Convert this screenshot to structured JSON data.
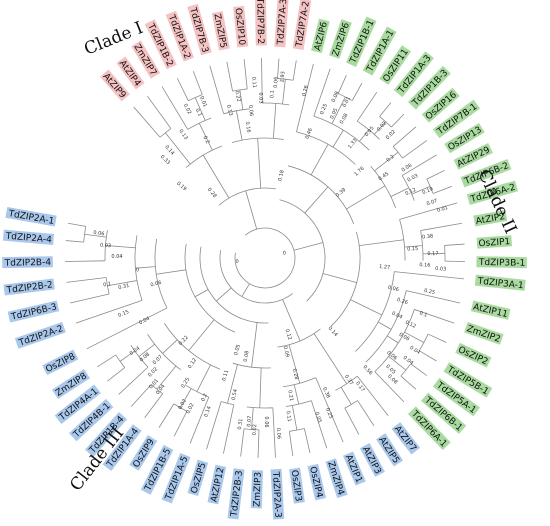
{
  "clades": {
    "clade1": {
      "label": "Clade I",
      "color": "#f4c2c2"
    },
    "clade2": {
      "label": "Clade II",
      "color": "#a9dba0"
    },
    "clade3": {
      "label": "Clade III",
      "color": "#a9c8ec"
    }
  },
  "leaves": [
    {
      "name": "AtZIP9",
      "clade": "clade1",
      "angle": -131
    },
    {
      "name": "AtZIP4",
      "clade": "clade1",
      "angle": -126
    },
    {
      "name": "ZmZIP7",
      "clade": "clade1",
      "angle": -121
    },
    {
      "name": "TdZIP1B-2",
      "clade": "clade1",
      "angle": -116
    },
    {
      "name": "TdZIP1A-2",
      "clade": "clade1",
      "angle": -111
    },
    {
      "name": "TdZIP7B-3",
      "clade": "clade1",
      "angle": -106
    },
    {
      "name": "ZmZIP5",
      "clade": "clade1",
      "angle": -101
    },
    {
      "name": "OsZIP10",
      "clade": "clade1",
      "angle": -96
    },
    {
      "name": "TdZIP7B-2",
      "clade": "clade1",
      "angle": -91
    },
    {
      "name": "TdZIP7A-3",
      "clade": "clade1",
      "angle": -86
    },
    {
      "name": "TdZIP7A-2",
      "clade": "clade1",
      "angle": -81
    },
    {
      "name": "AtZIP6",
      "clade": "clade2",
      "angle": -76
    },
    {
      "name": "ZmZIP6",
      "clade": "clade2",
      "angle": -71
    },
    {
      "name": "TdZIP1B-1",
      "clade": "clade2",
      "angle": -66
    },
    {
      "name": "TdZIP1A-1",
      "clade": "clade2",
      "angle": -61
    },
    {
      "name": "OsZIP11",
      "clade": "clade2",
      "angle": -56
    },
    {
      "name": "TdZIP1A-3",
      "clade": "clade2",
      "angle": -51
    },
    {
      "name": "TdZIP1B-3",
      "clade": "clade2",
      "angle": -46
    },
    {
      "name": "OsZIP16",
      "clade": "clade2",
      "angle": -41
    },
    {
      "name": "TdZIP7B-1",
      "clade": "clade2",
      "angle": -36
    },
    {
      "name": "OsZIP13",
      "clade": "clade2",
      "angle": -31
    },
    {
      "name": "AtZIP29",
      "clade": "clade2",
      "angle": -26
    },
    {
      "name": "TdZIP6B-2",
      "clade": "clade2",
      "angle": -21
    },
    {
      "name": "TdZIP6A-2",
      "clade": "clade2",
      "angle": -16
    },
    {
      "name": "AtZIP2",
      "clade": "clade2",
      "angle": -10
    },
    {
      "name": "OsZIP1",
      "clade": "clade2",
      "angle": -4
    },
    {
      "name": "TdZIP3B-1",
      "clade": "clade2",
      "angle": 1
    },
    {
      "name": "TdZIP3A-1",
      "clade": "clade2",
      "angle": 6
    },
    {
      "name": "AtZIP11",
      "clade": "clade2",
      "angle": 13
    },
    {
      "name": "ZmZIP2",
      "clade": "clade2",
      "angle": 19
    },
    {
      "name": "OsZIP2",
      "clade": "clade2",
      "angle": 25
    },
    {
      "name": "TdZIP5B-1",
      "clade": "clade2",
      "angle": 31
    },
    {
      "name": "TdZIP5A-1",
      "clade": "clade2",
      "angle": 36
    },
    {
      "name": "TdZIP6B-1",
      "clade": "clade2",
      "angle": 41
    },
    {
      "name": "TdZIP6A-1",
      "clade": "clade2",
      "angle": 46
    },
    {
      "name": "AtZIP7",
      "clade": "clade3",
      "angle": 52
    },
    {
      "name": "AtZIP5",
      "clade": "clade3",
      "angle": 57
    },
    {
      "name": "AtZIP3",
      "clade": "clade3",
      "angle": 62
    },
    {
      "name": "AtZIP1",
      "clade": "clade3",
      "angle": 67
    },
    {
      "name": "ZmZIP4",
      "clade": "clade3",
      "angle": 72
    },
    {
      "name": "OsZIP4",
      "clade": "clade3",
      "angle": 77
    },
    {
      "name": "OsZIP3",
      "clade": "clade3",
      "angle": 82
    },
    {
      "name": "TdZIP2A-3",
      "clade": "clade3",
      "angle": 87
    },
    {
      "name": "ZmZIP3",
      "clade": "clade3",
      "angle": 92
    },
    {
      "name": "TdZIP2B-3",
      "clade": "clade3",
      "angle": 97
    },
    {
      "name": "AtZIP12",
      "clade": "clade3",
      "angle": 102
    },
    {
      "name": "OsZIP5",
      "clade": "clade3",
      "angle": 107
    },
    {
      "name": "TdZIP1A-5",
      "clade": "clade3",
      "angle": 112
    },
    {
      "name": "TdZIP1B-5",
      "clade": "clade3",
      "angle": 117
    },
    {
      "name": "OsZIP9",
      "clade": "clade3",
      "angle": 122
    },
    {
      "name": "TdZIP1A-4",
      "clade": "clade3",
      "angle": 127
    },
    {
      "name": "TdZIP1B-4",
      "clade": "clade3",
      "angle": 132
    },
    {
      "name": "TdZIP4B-1",
      "clade": "clade3",
      "angle": 137
    },
    {
      "name": "TdZIP4A-1",
      "clade": "clade3",
      "angle": 142
    },
    {
      "name": "ZmZIP8",
      "clade": "clade3",
      "angle": 147
    },
    {
      "name": "OsZIP8",
      "clade": "clade3",
      "angle": 153
    },
    {
      "name": "TdZIP2A-2",
      "clade": "clade3",
      "angle": 161
    },
    {
      "name": "TdZIP6B-3",
      "clade": "clade3",
      "angle": 167
    },
    {
      "name": "TdZIP2B-2",
      "clade": "clade3",
      "angle": 173
    },
    {
      "name": "TdZIP2B-4",
      "clade": "clade3",
      "angle": 179
    },
    {
      "name": "TdZIP2A-4",
      "clade": "clade3",
      "angle": 185
    },
    {
      "name": "TdZIP2A-1",
      "clade": "clade3",
      "angle": 190
    }
  ],
  "branch_labels": [
    {
      "text": "0.28",
      "angle": -130,
      "depth": 0.42
    },
    {
      "text": "0.19",
      "angle": -140,
      "depth": 0.55
    },
    {
      "text": "0.33",
      "angle": -136,
      "depth": 0.7
    },
    {
      "text": "0.14",
      "angle": -132,
      "depth": 0.72
    },
    {
      "text": "0.13",
      "angle": -124,
      "depth": 0.74
    },
    {
      "text": "0.2",
      "angle": -117,
      "depth": 0.66
    },
    {
      "text": "0.1",
      "angle": -115,
      "depth": 0.8
    },
    {
      "text": "0.01",
      "angle": -112,
      "depth": 0.84
    },
    {
      "text": "0.02",
      "angle": -118,
      "depth": 0.84
    },
    {
      "text": "0.13",
      "angle": -104,
      "depth": 0.76
    },
    {
      "text": "0.16",
      "angle": -98,
      "depth": 0.66
    },
    {
      "text": "0.06",
      "angle": -96,
      "depth": 0.74
    },
    {
      "text": "0.22",
      "angle": -100,
      "depth": 0.82
    },
    {
      "text": "0.03",
      "angle": -92,
      "depth": 0.8
    },
    {
      "text": "0.11",
      "angle": -94,
      "depth": 0.88
    },
    {
      "text": "0.1",
      "angle": -87,
      "depth": 0.82
    },
    {
      "text": "0.06",
      "angle": -86,
      "depth": 0.88
    },
    {
      "text": "2.93",
      "angle": -84,
      "depth": 0.91
    },
    {
      "text": "0.18",
      "angle": -78,
      "depth": 0.42
    },
    {
      "text": "0.26",
      "angle": -76,
      "depth": 0.86
    },
    {
      "text": "0.46",
      "angle": -70,
      "depth": 0.66
    },
    {
      "text": "0.25",
      "angle": -68,
      "depth": 0.8
    },
    {
      "text": "0.08",
      "angle": -66,
      "depth": 0.88
    },
    {
      "text": "0.01",
      "angle": -62,
      "depth": 0.88
    },
    {
      "text": "0.05",
      "angle": -64,
      "depth": 0.8
    },
    {
      "text": "0.08",
      "angle": -60,
      "depth": 0.8
    },
    {
      "text": "1.33",
      "angle": -52,
      "depth": 0.72
    },
    {
      "text": "0.05",
      "angle": -50,
      "depth": 0.82
    },
    {
      "text": "0.02",
      "angle": -48,
      "depth": 0.88
    },
    {
      "text": "0.02",
      "angle": -44,
      "depth": 0.88
    },
    {
      "text": "0.39",
      "angle": -40,
      "depth": 0.5
    },
    {
      "text": "1.76",
      "angle": -42,
      "depth": 0.64
    },
    {
      "text": "0.45",
      "angle": -34,
      "depth": 0.72
    },
    {
      "text": "0.2",
      "angle": -38,
      "depth": 0.8
    },
    {
      "text": "0.06",
      "angle": -32,
      "depth": 0.84
    },
    {
      "text": "0.03",
      "angle": -28,
      "depth": 0.84
    },
    {
      "text": "0.12",
      "angle": -24,
      "depth": 0.8
    },
    {
      "text": "0.19",
      "angle": -22,
      "depth": 0.88
    },
    {
      "text": "0.07",
      "angle": -18,
      "depth": 0.88
    },
    {
      "text": "0.01",
      "angle": -15,
      "depth": 0.92
    },
    {
      "text": "0.38",
      "angle": -7,
      "depth": 0.82
    },
    {
      "text": "0.15",
      "angle": -3,
      "depth": 0.74
    },
    {
      "text": "0.17",
      "angle": -1,
      "depth": 0.84
    },
    {
      "text": "0.16",
      "angle": 3,
      "depth": 0.8
    },
    {
      "text": "0.03",
      "angle": 4,
      "depth": 0.88
    },
    {
      "text": "1.27",
      "angle": 5,
      "depth": 0.6
    },
    {
      "text": "0.25",
      "angle": 12,
      "depth": 0.84
    },
    {
      "text": "0.06",
      "angle": 14,
      "depth": 0.66
    },
    {
      "text": "0.26",
      "angle": 18,
      "depth": 0.72
    },
    {
      "text": "0.1",
      "angle": 20,
      "depth": 0.84
    },
    {
      "text": "0.04",
      "angle": 24,
      "depth": 0.72
    },
    {
      "text": "0.12",
      "angle": 25,
      "depth": 0.8
    },
    {
      "text": "0.06",
      "angle": 30,
      "depth": 0.8
    },
    {
      "text": "0.04",
      "angle": 32,
      "depth": 0.88
    },
    {
      "text": "0.04",
      "angle": 36,
      "depth": 0.88
    },
    {
      "text": "0.06",
      "angle": 38,
      "depth": 0.8
    },
    {
      "text": "0.05",
      "angle": 42,
      "depth": 0.84
    },
    {
      "text": "0.08",
      "angle": 44,
      "depth": 0.88
    },
    {
      "text": "0.56",
      "angle": 48,
      "depth": 0.76
    },
    {
      "text": "0.17",
      "angle": 54,
      "depth": 0.8
    },
    {
      "text": "0.37",
      "angle": 56,
      "depth": 0.74
    },
    {
      "text": "0.14",
      "angle": 48,
      "depth": 0.5
    },
    {
      "text": "0.38",
      "angle": 66,
      "depth": 0.74
    },
    {
      "text": "0.05",
      "angle": 72,
      "depth": 0.84
    },
    {
      "text": "0.25",
      "angle": 68,
      "depth": 0.84
    },
    {
      "text": "0.12",
      "angle": 74,
      "depth": 0.4
    },
    {
      "text": "0.09",
      "angle": 78,
      "depth": 0.48
    },
    {
      "text": "0.28",
      "angle": 76,
      "depth": 0.6
    },
    {
      "text": "0.21",
      "angle": 80,
      "depth": 0.7
    },
    {
      "text": "0.11",
      "angle": 82,
      "depth": 0.8
    },
    {
      "text": "0.06",
      "angle": 86,
      "depth": 0.88
    },
    {
      "text": "0.06",
      "angle": 90,
      "depth": 0.82
    },
    {
      "text": "0.02",
      "angle": 93,
      "depth": 0.86
    },
    {
      "text": "0.07",
      "angle": 95,
      "depth": 0.82
    },
    {
      "text": "0.31",
      "angle": 98,
      "depth": 0.84
    },
    {
      "text": "0.08",
      "angle": 100,
      "depth": 0.5
    },
    {
      "text": "0.54",
      "angle": 102,
      "depth": 0.7
    },
    {
      "text": "0.05",
      "angle": 106,
      "depth": 0.48
    },
    {
      "text": "0.11",
      "angle": 108,
      "depth": 0.62
    },
    {
      "text": "0.14",
      "angle": 110,
      "depth": 0.82
    },
    {
      "text": "0.2",
      "angle": 113,
      "depth": 0.76
    },
    {
      "text": "0.02",
      "angle": 116,
      "depth": 0.84
    },
    {
      "text": "0.02",
      "angle": 119,
      "depth": 0.84
    },
    {
      "text": "0.25",
      "angle": 122,
      "depth": 0.74
    },
    {
      "text": "0.12",
      "angle": 124,
      "depth": 0.64
    },
    {
      "text": "0.04",
      "angle": 128,
      "depth": 0.84
    },
    {
      "text": "0.01",
      "angle": 131,
      "depth": 0.84
    },
    {
      "text": "0.02",
      "angle": 134,
      "depth": 0.8
    },
    {
      "text": "0.07",
      "angle": 136,
      "depth": 0.74
    },
    {
      "text": "0.08",
      "angle": 140,
      "depth": 0.78
    },
    {
      "text": "0.04",
      "angle": 144,
      "depth": 0.8
    },
    {
      "text": "0.22",
      "angle": 134,
      "depth": 0.58
    },
    {
      "text": "0.04",
      "angle": 152,
      "depth": 0.68
    },
    {
      "text": "0.15",
      "angle": 158,
      "depth": 0.76
    },
    {
      "text": "0.06",
      "angle": 166,
      "depth": 0.56
    },
    {
      "text": "0.31",
      "angle": 168,
      "depth": 0.72
    },
    {
      "text": "0.1",
      "angle": 170,
      "depth": 0.8
    },
    {
      "text": "0",
      "angle": 174,
      "depth": 0.64
    },
    {
      "text": "0.04",
      "angle": 180,
      "depth": 0.74
    },
    {
      "text": "0.03",
      "angle": 184,
      "depth": 0.8
    },
    {
      "text": "0.06",
      "angle": 188,
      "depth": 0.84
    },
    {
      "text": "0",
      "angle": -10,
      "depth": 0.1
    },
    {
      "text": "0",
      "angle": 170,
      "depth": 0.14
    }
  ]
}
